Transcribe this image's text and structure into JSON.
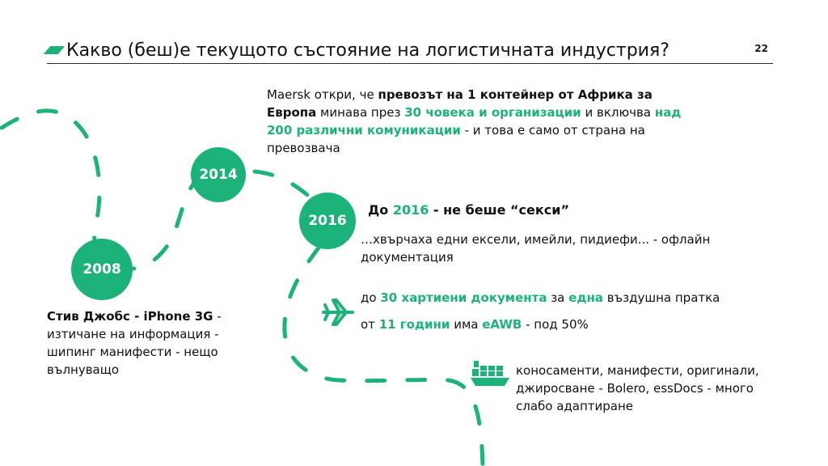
{
  "header": {
    "title": "Какво (беш)е текущото състояние на логистичната индустрия?",
    "page_number": "22"
  },
  "milestones": [
    {
      "year": "2008"
    },
    {
      "year": "2014"
    },
    {
      "year": "2016"
    }
  ],
  "blocks": {
    "maersk": {
      "p1": "Maersk откри, че ",
      "b1": "превозът на 1 контейнер от Африка за Европа",
      "p2": " минава през ",
      "g1": "30 човека и организации",
      "p3": " и включва ",
      "g2": "над 200 различни комуникации",
      "p4": " - и това е само от страна на превозвача"
    },
    "sexy": {
      "h1": "До ",
      "hg": "2016",
      "h2": " - не беше “секси”",
      "desc": "…хвърчаха едни ексели, имейли, пидиефи... - офлайн документация"
    },
    "air": {
      "l1a": "до ",
      "l1g": "30 хартиени документа",
      "l1b": " за ",
      "l1g2": "една",
      "l1c": " въздушна пратка",
      "l2a": "от ",
      "l2g": "11 години",
      "l2b": " има ",
      "l2g2": "eAWB",
      "l2c": " - под 50%"
    },
    "ship": {
      "text": "коносаменти, манифести, оригинали, джиросване - Bolero, essDocs - много слабо адаптиране"
    },
    "jobs": {
      "bold": "Стив Джобс - iPhone 3G",
      "rest": " - изтичане на информация - шипинг манифести - нещо вълнуващо"
    }
  },
  "icons": {
    "plane": "airplane-icon",
    "ship": "cargo-ship-icon"
  },
  "colors": {
    "accent": "#1bb37a",
    "text": "#111111"
  }
}
